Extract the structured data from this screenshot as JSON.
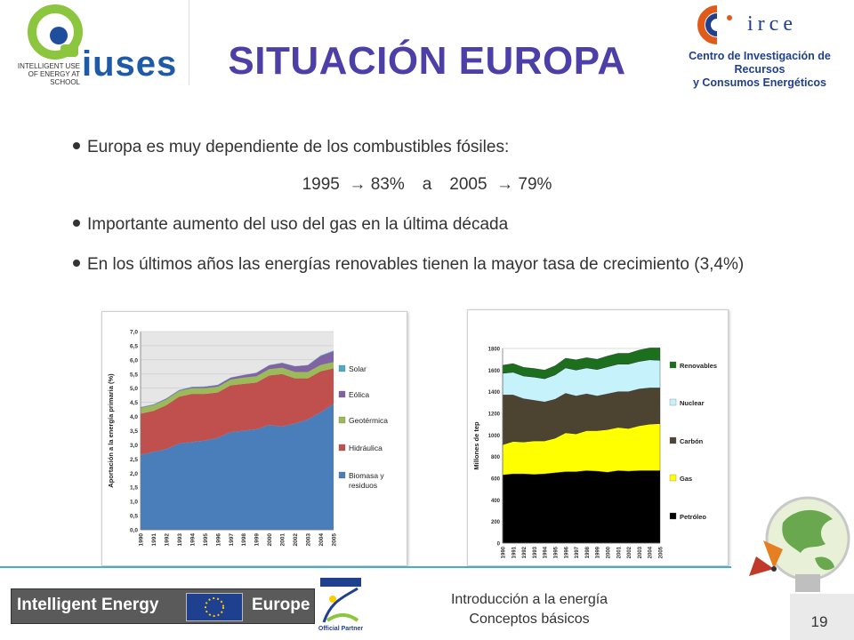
{
  "slide": {
    "title": "SITUACIÓN EUROPA",
    "bullets": [
      "Europa es muy dependiente de los combustibles fósiles:",
      "Importante aumento del uso del gas en la última década",
      "En los últimos años las energías renovables tienen la mayor tasa de crecimiento (3,4%)"
    ],
    "fossil_line": {
      "y1": "1995",
      "v1": "83%",
      "sep": "a",
      "y2": "2005",
      "v2": "79%"
    },
    "footer_line1": "Introducción a la energía",
    "footer_line2": "Conceptos básicos",
    "page_number": "19"
  },
  "logos": {
    "iuses_tagline1": "INTELLIGENT USE",
    "iuses_tagline2": "OF ENERGY AT SCHOOL",
    "iuses_name": "iuses",
    "circe_name": "irce",
    "circe_line1": "Centro de Investigación de Recursos",
    "circe_line2": "y Consumos Energéticos",
    "ie_left": "Intelligent Energy",
    "ie_right": "Europe",
    "partner": "Official Partner"
  },
  "colors": {
    "title": "#4d3fa8",
    "biomasa": "#4a7ebb",
    "hidraulica": "#c0504d",
    "geotermica": "#9bbb59",
    "eolica": "#8064a2",
    "solar": "#4bacc6",
    "petroleo": "#000000",
    "gas": "#ffff00",
    "carbon": "#4d4331",
    "nuclear": "#c6f2fb",
    "renovables": "#1c6f1c"
  },
  "chart_data": [
    {
      "type": "area",
      "ylabel": "Aportación a la energía primaria (%)",
      "ylim": [
        0,
        7
      ],
      "yticks": [
        "0,0",
        "0,5",
        "1,0",
        "1,5",
        "2,0",
        "2,5",
        "3,0",
        "3,5",
        "4,0",
        "4,5",
        "5,0",
        "5,5",
        "6,0",
        "6,5",
        "7,0"
      ],
      "x": [
        "1990",
        "1991",
        "1992",
        "1993",
        "1994",
        "1995",
        "1996",
        "1997",
        "1998",
        "1999",
        "2000",
        "2001",
        "2002",
        "2003",
        "2004",
        "2005"
      ],
      "legend_position": "right",
      "stacked": true,
      "series": [
        {
          "name": "Biomasa y residuos",
          "values": [
            2.65,
            2.75,
            2.85,
            3.05,
            3.1,
            3.15,
            3.25,
            3.45,
            3.5,
            3.55,
            3.7,
            3.65,
            3.75,
            3.9,
            4.15,
            4.45
          ]
        },
        {
          "name": "Hidráulica",
          "values": [
            1.45,
            1.45,
            1.55,
            1.65,
            1.7,
            1.65,
            1.6,
            1.65,
            1.65,
            1.65,
            1.75,
            1.85,
            1.6,
            1.45,
            1.45,
            1.25
          ]
        },
        {
          "name": "Geotérmica",
          "values": [
            0.2,
            0.2,
            0.2,
            0.2,
            0.2,
            0.2,
            0.2,
            0.2,
            0.22,
            0.22,
            0.22,
            0.22,
            0.22,
            0.22,
            0.22,
            0.22
          ]
        },
        {
          "name": "Eólica",
          "values": [
            0.02,
            0.02,
            0.03,
            0.03,
            0.04,
            0.05,
            0.06,
            0.07,
            0.09,
            0.12,
            0.14,
            0.17,
            0.2,
            0.24,
            0.32,
            0.38
          ]
        },
        {
          "name": "Solar",
          "values": [
            0.01,
            0.01,
            0.01,
            0.01,
            0.01,
            0.01,
            0.01,
            0.01,
            0.01,
            0.01,
            0.01,
            0.01,
            0.01,
            0.01,
            0.02,
            0.03
          ]
        }
      ]
    },
    {
      "type": "area",
      "ylabel": "Millones de tep",
      "ylim": [
        0,
        1800
      ],
      "yticks": [
        "0",
        "200",
        "400",
        "600",
        "800",
        "1000",
        "1200",
        "1400",
        "1600",
        "1800"
      ],
      "x": [
        "1990",
        "1991",
        "1992",
        "1993",
        "1994",
        "1995",
        "1996",
        "1997",
        "1998",
        "1999",
        "2000",
        "2001",
        "2002",
        "2003",
        "2004",
        "2005"
      ],
      "legend_position": "right",
      "stacked": true,
      "series": [
        {
          "name": "Petróleo",
          "values": [
            630,
            640,
            640,
            635,
            640,
            650,
            660,
            660,
            670,
            665,
            655,
            670,
            665,
            670,
            670,
            670
          ]
        },
        {
          "name": "Gas",
          "values": [
            280,
            300,
            295,
            310,
            305,
            320,
            360,
            350,
            370,
            375,
            395,
            400,
            395,
            415,
            430,
            435
          ]
        },
        {
          "name": "Carbón",
          "values": [
            460,
            430,
            400,
            375,
            360,
            360,
            365,
            350,
            340,
            320,
            330,
            330,
            340,
            340,
            335,
            330
          ]
        },
        {
          "name": "Nuclear",
          "values": [
            200,
            210,
            210,
            215,
            215,
            225,
            235,
            240,
            240,
            245,
            250,
            255,
            255,
            255,
            260,
            255
          ]
        },
        {
          "name": "Renovables",
          "values": [
            75,
            80,
            80,
            80,
            80,
            85,
            90,
            95,
            95,
            95,
            100,
            100,
            100,
            105,
            110,
            115
          ]
        }
      ]
    }
  ]
}
